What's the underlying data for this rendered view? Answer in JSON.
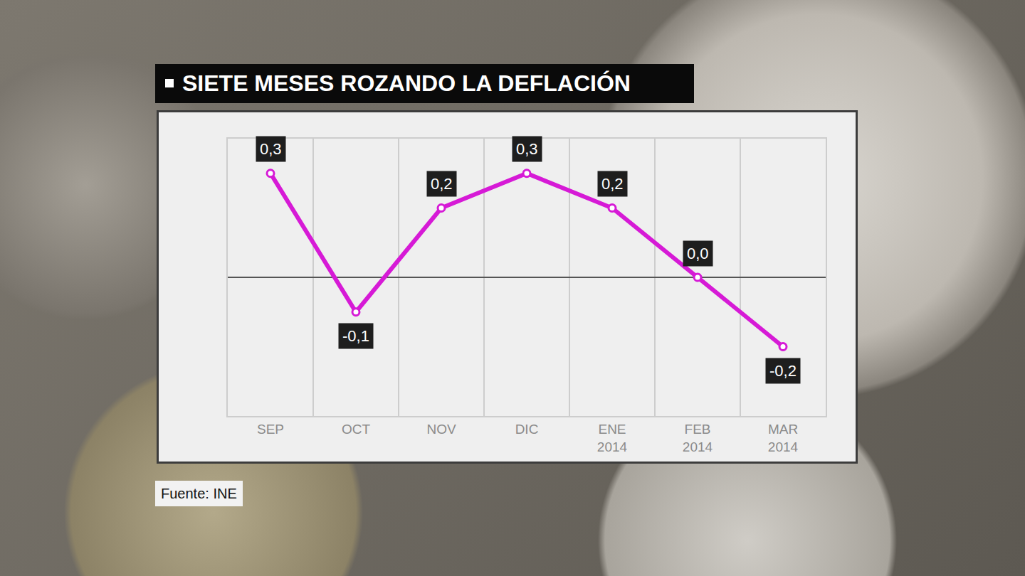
{
  "chart_data": {
    "type": "line",
    "title": "SIETE MESES ROZANDO LA DEFLACIÓN",
    "categories": [
      "SEP",
      "OCT",
      "NOV",
      "DIC",
      "ENE 2014",
      "FEB 2014",
      "MAR 2014"
    ],
    "values": [
      0.3,
      -0.1,
      0.2,
      0.3,
      0.2,
      0.0,
      -0.2
    ],
    "value_labels": [
      "0,3",
      "-0,1",
      "0,2",
      "0,3",
      "0,2",
      "0,0",
      "-0,2"
    ],
    "color": "#d61ad6",
    "marker": "circle",
    "data_labels": true,
    "ylim": [
      -0.4,
      0.4
    ],
    "yticks": [
      0
    ],
    "grid": true,
    "tick_labels": "x",
    "source": "Fuente: INE"
  }
}
